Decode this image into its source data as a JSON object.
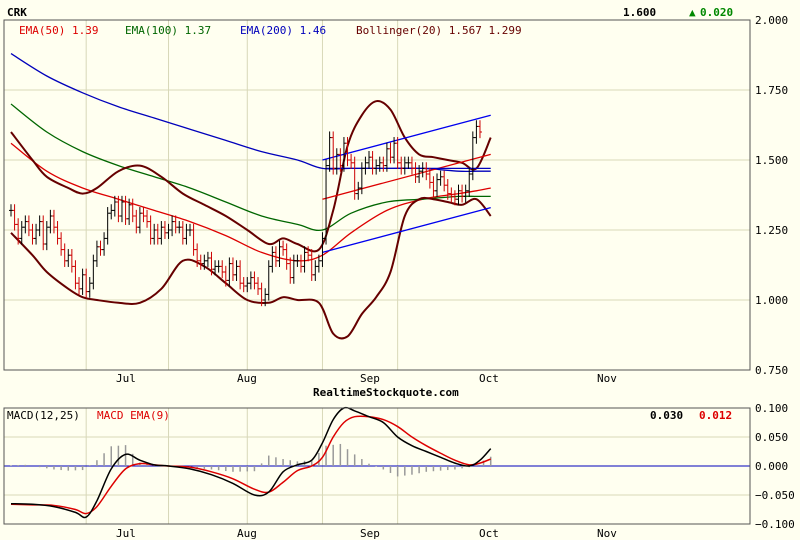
{
  "colors": {
    "background": "#fffff0",
    "grid": "#d8d8b8",
    "frame": "#555555",
    "ema50": "#dd0000",
    "ema100": "#006600",
    "ema200": "#0000bb",
    "bollinger": "#660000",
    "channel": "#0000ee",
    "channel_mid": "#dd0000",
    "bar_up": "#000000",
    "bar_down": "#cc0000",
    "macd": "#000000",
    "macd_signal": "#dd0000",
    "histogram": "#999999",
    "change_up": "#008800"
  },
  "chart_data": [
    {
      "type": "line",
      "symbol": "CRK",
      "last_price": "1.600",
      "change": "0.020",
      "watermark": "RealtimeStockquote.com",
      "x_tick_labels": [
        "Jul",
        "Aug",
        "Sep",
        "Oct",
        "Nov"
      ],
      "y_tick_labels": [
        "0.750",
        "1.000",
        "1.250",
        "1.500",
        "1.750",
        "2.000"
      ],
      "ylim": [
        0.75,
        2.0
      ],
      "grid": true,
      "legend": {
        "ema50": "EMA(50) 1.39",
        "ema100": "EMA(100) 1.37",
        "ema200": "EMA(200) 1.46",
        "bollinger": "Bollinger(20) 1.567 1.299"
      },
      "trading_days": 170,
      "month_start_index": {
        "Jul": 21,
        "Aug": 44,
        "Sep": 66,
        "Oct": 87,
        "Nov": 108
      },
      "series": [
        {
          "name": "Price (OHLC)",
          "kind": "ohlc",
          "close": [
            1.32,
            1.27,
            1.22,
            1.26,
            1.28,
            1.25,
            1.22,
            1.25,
            1.28,
            1.2,
            1.26,
            1.3,
            1.26,
            1.22,
            1.18,
            1.14,
            1.16,
            1.12,
            1.06,
            1.04,
            1.09,
            1.03,
            1.06,
            1.14,
            1.19,
            1.18,
            1.22,
            1.31,
            1.32,
            1.35,
            1.3,
            1.35,
            1.29,
            1.34,
            1.3,
            1.26,
            1.31,
            1.3,
            1.28,
            1.22,
            1.25,
            1.22,
            1.26,
            1.24,
            1.25,
            1.28,
            1.26,
            1.26,
            1.22,
            1.25,
            1.25,
            1.18,
            1.14,
            1.13,
            1.14,
            1.15,
            1.11,
            1.12,
            1.12,
            1.1,
            1.07,
            1.13,
            1.09,
            1.12,
            1.06,
            1.05,
            1.06,
            1.08,
            1.06,
            1.04,
            1.0,
            1.02,
            1.12,
            1.17,
            1.14,
            1.19,
            1.18,
            1.13,
            1.08,
            1.14,
            1.14,
            1.12,
            1.17,
            1.16,
            1.09,
            1.12,
            1.14,
            1.22,
            1.48,
            1.58,
            1.47,
            1.52,
            1.48,
            1.56,
            1.5,
            1.49,
            1.38,
            1.4,
            1.47,
            1.49,
            1.51,
            1.47,
            1.48,
            1.49,
            1.48,
            1.54,
            1.51,
            1.56,
            1.49,
            1.47,
            1.49,
            1.49,
            1.47,
            1.44,
            1.46,
            1.47,
            1.45,
            1.42,
            1.39,
            1.43,
            1.44,
            1.41,
            1.38,
            1.37,
            1.36,
            1.39,
            1.37,
            1.39,
            1.45,
            1.58,
            1.62,
            1.6
          ]
        },
        {
          "name": "EMA(50)",
          "kind": "line",
          "x": [
            0,
            10,
            20,
            30,
            40,
            50,
            60,
            70,
            80,
            87,
            95,
            105,
            115,
            125,
            130,
            134
          ],
          "y": [
            1.56,
            1.46,
            1.4,
            1.36,
            1.32,
            1.28,
            1.23,
            1.17,
            1.14,
            1.16,
            1.24,
            1.32,
            1.36,
            1.38,
            1.39,
            1.4
          ]
        },
        {
          "name": "EMA(100)",
          "kind": "line",
          "x": [
            0,
            10,
            20,
            30,
            40,
            50,
            60,
            70,
            80,
            87,
            95,
            105,
            115,
            125,
            130,
            134
          ],
          "y": [
            1.7,
            1.6,
            1.53,
            1.48,
            1.44,
            1.4,
            1.35,
            1.3,
            1.27,
            1.25,
            1.31,
            1.35,
            1.36,
            1.37,
            1.37,
            1.37
          ]
        },
        {
          "name": "EMA(200)",
          "kind": "line",
          "x": [
            0,
            10,
            20,
            30,
            40,
            50,
            60,
            70,
            80,
            87,
            95,
            105,
            115,
            125,
            130,
            134
          ],
          "y": [
            1.88,
            1.8,
            1.74,
            1.69,
            1.65,
            1.61,
            1.57,
            1.53,
            1.5,
            1.47,
            1.47,
            1.47,
            1.47,
            1.46,
            1.46,
            1.46
          ]
        },
        {
          "name": "Bollinger upper",
          "kind": "line",
          "x": [
            0,
            6,
            10,
            16,
            20,
            24,
            30,
            36,
            42,
            48,
            54,
            60,
            66,
            72,
            76,
            80,
            86,
            90,
            94,
            98,
            102,
            106,
            110,
            114,
            118,
            122,
            126,
            130,
            134
          ],
          "y": [
            1.6,
            1.5,
            1.44,
            1.4,
            1.38,
            1.4,
            1.46,
            1.48,
            1.44,
            1.38,
            1.34,
            1.3,
            1.25,
            1.2,
            1.22,
            1.2,
            1.18,
            1.32,
            1.55,
            1.66,
            1.71,
            1.68,
            1.58,
            1.52,
            1.51,
            1.5,
            1.49,
            1.47,
            1.58
          ]
        },
        {
          "name": "Bollinger lower",
          "kind": "line",
          "x": [
            0,
            6,
            10,
            16,
            20,
            24,
            30,
            36,
            42,
            48,
            54,
            60,
            66,
            72,
            76,
            80,
            86,
            90,
            94,
            98,
            102,
            106,
            110,
            114,
            118,
            122,
            126,
            130,
            134
          ],
          "y": [
            1.24,
            1.16,
            1.1,
            1.04,
            1.01,
            1.0,
            0.99,
            0.99,
            1.04,
            1.14,
            1.12,
            1.06,
            1.0,
            0.99,
            1.01,
            1.0,
            0.99,
            0.88,
            0.87,
            0.95,
            1.01,
            1.1,
            1.3,
            1.36,
            1.36,
            1.35,
            1.34,
            1.36,
            1.3
          ]
        },
        {
          "name": "Channel upper",
          "kind": "line",
          "x": [
            87,
            134
          ],
          "y": [
            1.5,
            1.66
          ]
        },
        {
          "name": "Channel middle",
          "kind": "line",
          "x": [
            87,
            134
          ],
          "y": [
            1.36,
            1.52
          ]
        },
        {
          "name": "Channel lower",
          "kind": "line",
          "x": [
            87,
            134
          ],
          "y": [
            1.17,
            1.33
          ]
        },
        {
          "name": "Horizontal line",
          "kind": "line",
          "x": [
            88,
            134
          ],
          "y": [
            1.47,
            1.47
          ]
        }
      ]
    },
    {
      "type": "line",
      "legend": {
        "macd": "MACD(12,25)",
        "signal": "MACD EMA(9)"
      },
      "macd_value": "0.030",
      "signal_value": "0.012",
      "y_tick_labels": [
        "−0.100",
        "−0.050",
        "0.000",
        "0.050",
        "0.100"
      ],
      "ylim": [
        -0.1,
        0.1
      ],
      "grid": true,
      "series": [
        {
          "name": "MACD(12,25)",
          "kind": "line",
          "x": [
            0,
            6,
            12,
            18,
            21,
            24,
            28,
            32,
            36,
            40,
            44,
            50,
            56,
            62,
            68,
            72,
            76,
            80,
            84,
            87,
            90,
            93,
            96,
            100,
            104,
            108,
            112,
            116,
            120,
            124,
            128,
            131,
            134
          ],
          "y": [
            -0.065,
            -0.066,
            -0.07,
            -0.08,
            -0.088,
            -0.06,
            -0.005,
            0.02,
            0.01,
            0.002,
            0.0,
            -0.005,
            -0.015,
            -0.03,
            -0.05,
            -0.045,
            -0.01,
            0.002,
            0.01,
            0.04,
            0.08,
            0.1,
            0.095,
            0.085,
            0.075,
            0.05,
            0.035,
            0.025,
            0.015,
            0.005,
            0.0,
            0.01,
            0.03
          ]
        },
        {
          "name": "MACD EMA(9)",
          "kind": "line",
          "x": [
            0,
            6,
            12,
            18,
            21,
            24,
            28,
            32,
            36,
            40,
            44,
            50,
            56,
            62,
            68,
            72,
            76,
            80,
            84,
            87,
            90,
            93,
            96,
            100,
            104,
            108,
            112,
            116,
            120,
            124,
            128,
            131,
            134
          ],
          "y": [
            -0.066,
            -0.067,
            -0.068,
            -0.075,
            -0.082,
            -0.07,
            -0.035,
            -0.005,
            0.004,
            0.002,
            0.0,
            -0.002,
            -0.01,
            -0.022,
            -0.04,
            -0.045,
            -0.028,
            -0.008,
            0.0,
            0.015,
            0.05,
            0.075,
            0.085,
            0.085,
            0.08,
            0.068,
            0.05,
            0.035,
            0.022,
            0.01,
            0.002,
            0.005,
            0.012
          ]
        },
        {
          "name": "Histogram",
          "kind": "bar",
          "x": [
            0,
            4,
            8,
            12,
            16,
            20,
            24,
            28,
            32,
            36,
            40,
            44,
            50,
            56,
            62,
            68,
            72,
            76,
            80,
            84,
            88,
            92,
            96,
            100,
            104,
            108,
            112,
            116,
            120,
            124,
            128,
            131,
            134
          ],
          "y": [
            0.001,
            0.002,
            -0.002,
            -0.006,
            -0.008,
            -0.007,
            0.01,
            0.034,
            0.036,
            0.006,
            0.001,
            0.0,
            -0.003,
            -0.006,
            -0.01,
            -0.009,
            0.018,
            0.012,
            0.008,
            0.01,
            0.035,
            0.038,
            0.02,
            0.004,
            -0.006,
            -0.018,
            -0.015,
            -0.01,
            -0.008,
            -0.006,
            -0.002,
            0.006,
            0.016
          ]
        }
      ]
    }
  ]
}
